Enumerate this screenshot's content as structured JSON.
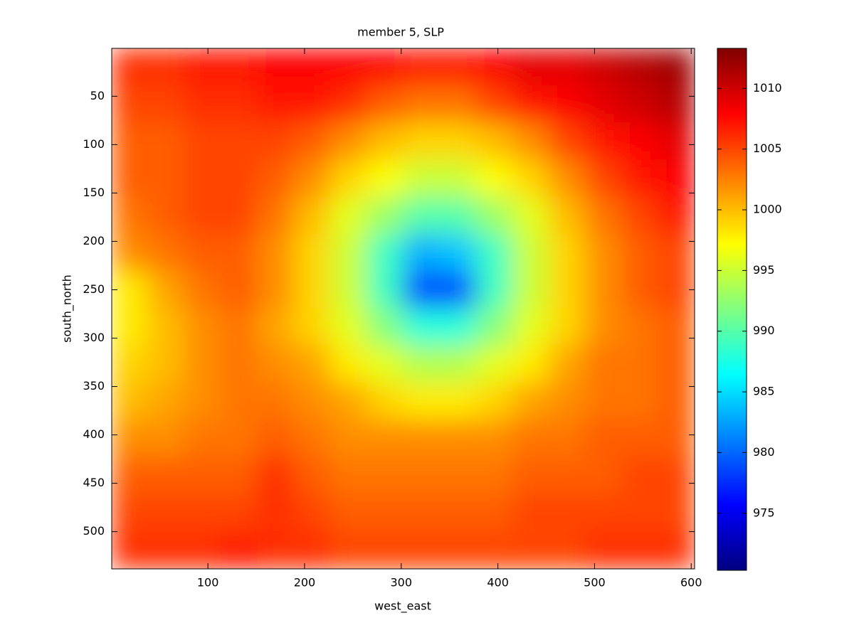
{
  "chart_data": {
    "type": "heatmap",
    "title": "member 5, SLP",
    "x_label": "west_east",
    "y_label": "south_north",
    "xlim": [
      0.5,
      603.5
    ],
    "ylim": [
      0.5,
      538.5
    ],
    "y_direction": "reverse",
    "xticks": [
      100,
      200,
      300,
      400,
      500,
      600
    ],
    "yticks": [
      50,
      100,
      150,
      200,
      250,
      300,
      350,
      400,
      450,
      500
    ],
    "colormap": "jet",
    "clim": [
      970.3,
      1013.3
    ],
    "cticks": [
      975,
      980,
      985,
      990,
      995,
      1000,
      1005,
      1010
    ],
    "values": [
      [
        1006,
        1006,
        1007,
        1007,
        1008,
        1008,
        1008,
        1008,
        1007,
        1007,
        1008,
        1009,
        1009,
        1010,
        1011,
        1012
      ],
      [
        1005,
        1005,
        1006,
        1006,
        1007,
        1007,
        1006,
        1004,
        1003,
        1003,
        1005,
        1007,
        1008,
        1009,
        1010,
        1011
      ],
      [
        1004,
        1004,
        1005,
        1005,
        1005,
        1004,
        1002,
        1000,
        999,
        999,
        1000,
        1002,
        1005,
        1007,
        1008,
        1009
      ],
      [
        1004,
        1004,
        1005,
        1005,
        1004,
        1002,
        999,
        997,
        995,
        995,
        997,
        999,
        1002,
        1005,
        1007,
        1008
      ],
      [
        1003,
        1004,
        1005,
        1005,
        1003,
        1000,
        996,
        993,
        990,
        990,
        993,
        996,
        1000,
        1003,
        1005,
        1007
      ],
      [
        1002,
        1003,
        1004,
        1004,
        1002,
        999,
        995,
        989,
        983,
        984,
        989,
        995,
        999,
        1002,
        1004,
        1005
      ],
      [
        998,
        1001,
        1003,
        1004,
        1002,
        999,
        995,
        989,
        979,
        979,
        989,
        995,
        999,
        1002,
        1004,
        1005
      ],
      [
        998,
        1000,
        1002,
        1003,
        1001,
        999,
        996,
        992,
        988,
        988,
        992,
        996,
        999,
        1002,
        1003,
        1004
      ],
      [
        999,
        1000,
        1002,
        1003,
        1002,
        1001,
        998,
        996,
        994,
        994,
        996,
        998,
        1001,
        1003,
        1003,
        1004
      ],
      [
        1000,
        1001,
        1002,
        1003,
        1003,
        1002,
        1001,
        999,
        998,
        998,
        999,
        1001,
        1002,
        1003,
        1003,
        1004
      ],
      [
        1002,
        1002,
        1003,
        1003,
        1004,
        1003,
        1002,
        1002,
        1002,
        1002,
        1002,
        1003,
        1003,
        1004,
        1004,
        1004
      ],
      [
        1004,
        1004,
        1004,
        1004,
        1006,
        1004,
        1003,
        1003,
        1003,
        1003,
        1003,
        1004,
        1004,
        1004,
        1005,
        1005
      ],
      [
        1005,
        1005,
        1005,
        1005,
        1006,
        1005,
        1004,
        1004,
        1004,
        1004,
        1004,
        1005,
        1005,
        1005,
        1005,
        1005
      ],
      [
        1006,
        1006,
        1006,
        1007,
        1006,
        1006,
        1005,
        1005,
        1005,
        1005,
        1005,
        1005,
        1005,
        1006,
        1006,
        1006
      ]
    ]
  }
}
